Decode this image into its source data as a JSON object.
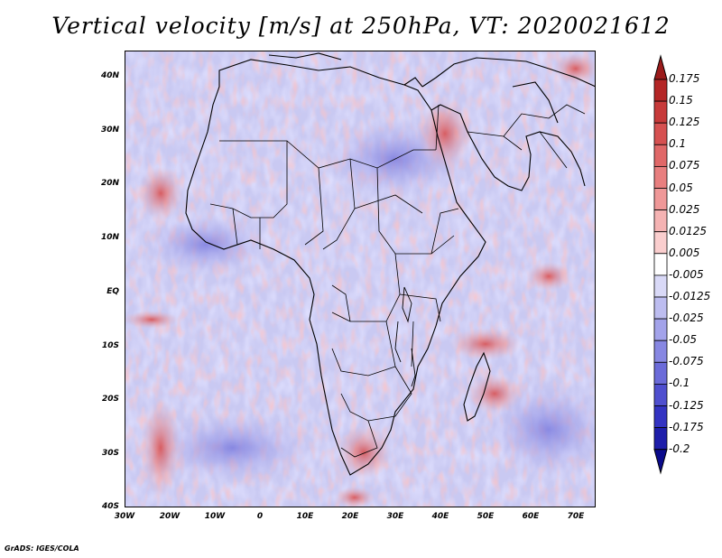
{
  "title": "Vertical velocity [m/s] at 250hPa, VT: 2020021612",
  "footer": "GrADS: IGES/COLA",
  "map": {
    "lat_ticks": [
      "40N",
      "30N",
      "20N",
      "10N",
      "EQ",
      "10S",
      "20S",
      "30S",
      "40S"
    ],
    "lon_ticks": [
      "30W",
      "20W",
      "10W",
      "0",
      "10E",
      "20E",
      "30E",
      "40E",
      "50E",
      "60E",
      "70E"
    ],
    "lat_range": [
      -40,
      45
    ],
    "lon_range": [
      -30,
      75
    ]
  },
  "colorbar": {
    "levels": [
      "0.175",
      "0.15",
      "0.125",
      "0.1",
      "0.075",
      "0.05",
      "0.025",
      "0.0125",
      "0.005",
      "-0.005",
      "-0.0125",
      "-0.025",
      "-0.05",
      "-0.075",
      "-0.1",
      "-0.125",
      "-0.175",
      "-0.2"
    ],
    "colors": [
      "#9b1b1b",
      "#b42626",
      "#c73a3a",
      "#d65151",
      "#e06868",
      "#e87f7f",
      "#ef9898",
      "#f5b3b3",
      "#facece",
      "#ffffff",
      "#d9d9f7",
      "#bdbdf0",
      "#a3a3ea",
      "#8787e2",
      "#6b6bd9",
      "#4f4fcf",
      "#3333c2",
      "#1e1eaa",
      "#0a0a8c"
    ]
  }
}
